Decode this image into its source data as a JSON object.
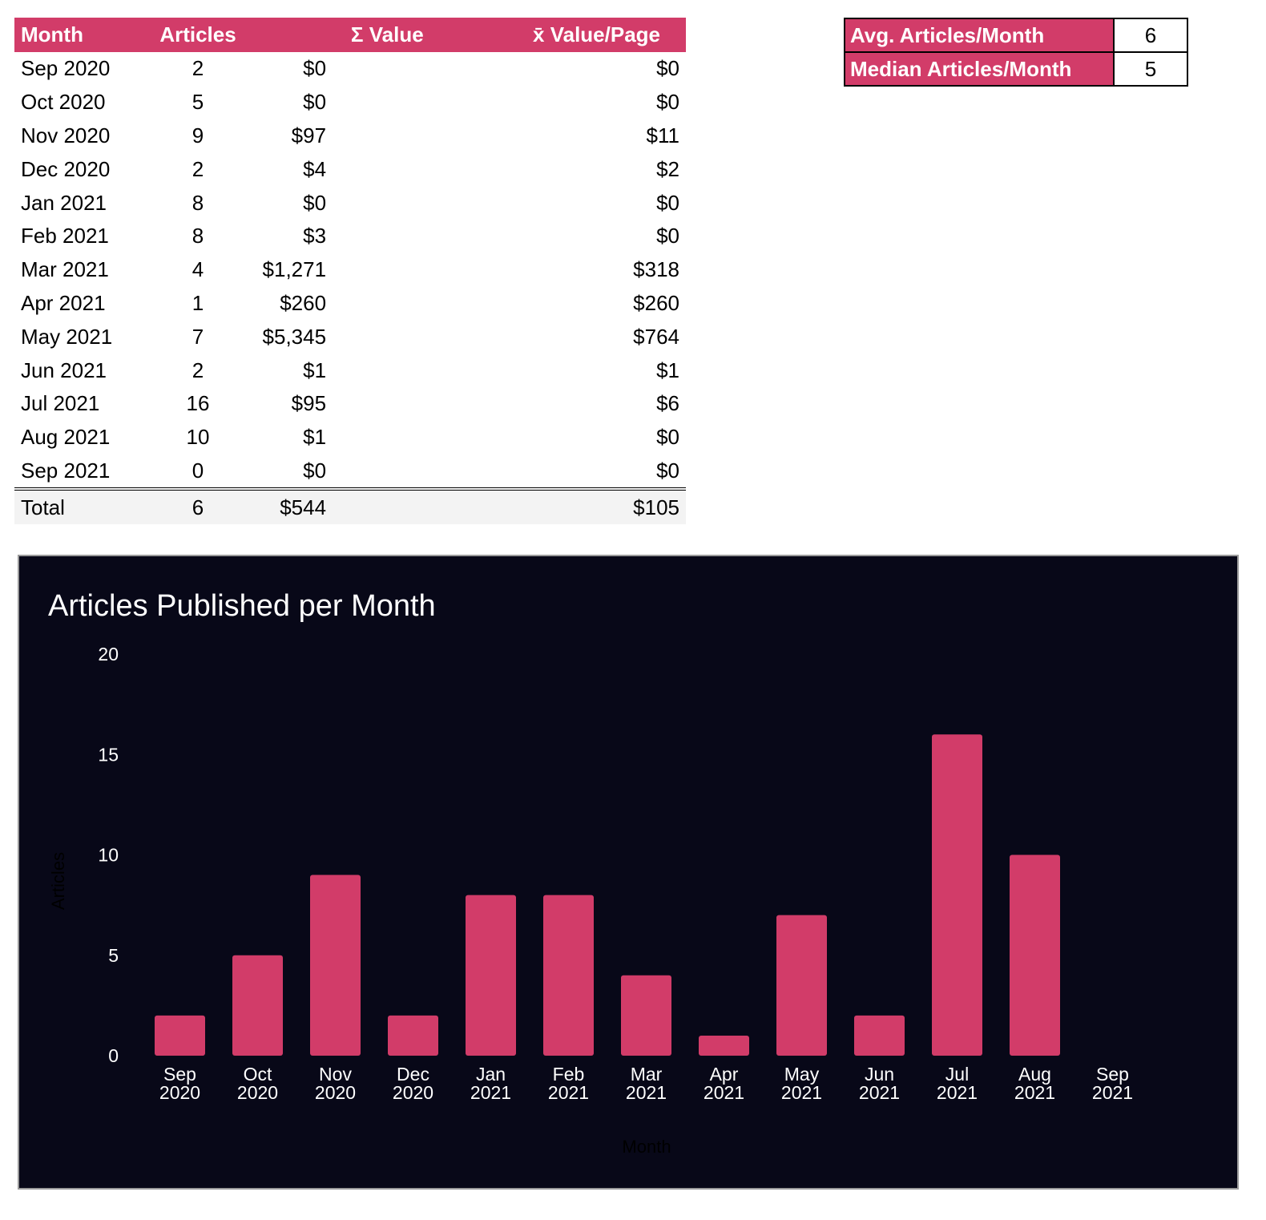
{
  "table": {
    "headers": [
      "Month",
      "Articles",
      "Σ Value",
      "x̄  Value/Page"
    ],
    "rows": [
      [
        "Sep 2020",
        "2",
        "$0",
        "$0"
      ],
      [
        "Oct 2020",
        "5",
        "$0",
        "$0"
      ],
      [
        "Nov 2020",
        "9",
        "$97",
        "$11"
      ],
      [
        "Dec 2020",
        "2",
        "$4",
        "$2"
      ],
      [
        "Jan 2021",
        "8",
        "$0",
        "$0"
      ],
      [
        "Feb 2021",
        "8",
        "$3",
        "$0"
      ],
      [
        "Mar 2021",
        "4",
        "$1,271",
        "$318"
      ],
      [
        "Apr 2021",
        "1",
        "$260",
        "$260"
      ],
      [
        "May 2021",
        "7",
        "$5,345",
        "$764"
      ],
      [
        "Jun 2021",
        "2",
        "$1",
        "$1"
      ],
      [
        "Jul 2021",
        "16",
        "$95",
        "$6"
      ],
      [
        "Aug 2021",
        "10",
        "$1",
        "$0"
      ],
      [
        "Sep 2021",
        "0",
        "$0",
        "$0"
      ]
    ],
    "total": [
      "Total",
      "6",
      "$544",
      "$105"
    ]
  },
  "stats": [
    {
      "label": "Avg. Articles/Month",
      "value": "6"
    },
    {
      "label": "Median Articles/Month",
      "value": "5"
    }
  ],
  "colors": {
    "accent": "#d23c69",
    "chart_bg": "#080818"
  },
  "chart_data": {
    "type": "bar",
    "title": "Articles Published per Month",
    "xlabel": "Month",
    "ylabel": "Articles",
    "ylim": [
      0,
      20
    ],
    "yticks": [
      0,
      5,
      10,
      15,
      20
    ],
    "grid": false,
    "categories": [
      [
        "Sep",
        "2020"
      ],
      [
        "Oct",
        "2020"
      ],
      [
        "Nov",
        "2020"
      ],
      [
        "Dec",
        "2020"
      ],
      [
        "Jan",
        "2021"
      ],
      [
        "Feb",
        "2021"
      ],
      [
        "Mar",
        "2021"
      ],
      [
        "Apr",
        "2021"
      ],
      [
        "May",
        "2021"
      ],
      [
        "Jun",
        "2021"
      ],
      [
        "Jul",
        "2021"
      ],
      [
        "Aug",
        "2021"
      ],
      [
        "Sep",
        "2021"
      ]
    ],
    "values": [
      2,
      5,
      9,
      2,
      8,
      8,
      4,
      1,
      7,
      2,
      16,
      10,
      0
    ]
  }
}
